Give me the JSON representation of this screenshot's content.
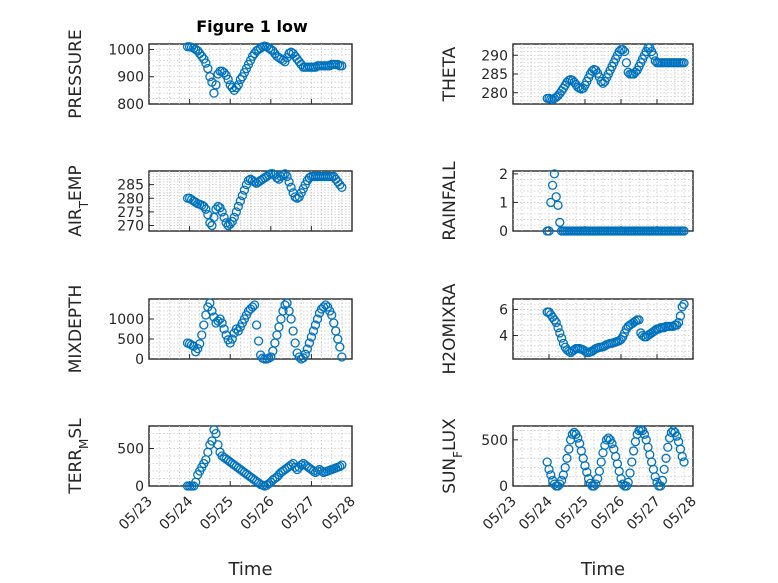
{
  "figure_title": "Figure 1 low",
  "marker_color": "#0072BD",
  "x_axis_label": "Time",
  "x_tick_labels": [
    "05/23",
    "05/24",
    "05/25",
    "05/26",
    "05/27",
    "05/28"
  ],
  "chart_data": [
    {
      "type": "scatter",
      "ylabel_main": "PRESSURE",
      "ylabel_sub": "",
      "ylabel_rest": "",
      "title": "Figure 1 low",
      "ylim": [
        800,
        1020
      ],
      "yticks": [
        800,
        900,
        1000
      ],
      "x": [
        23.95,
        24.0,
        24.05,
        24.1,
        24.15,
        24.2,
        24.25,
        24.3,
        24.35,
        24.4,
        24.45,
        24.5,
        24.55,
        24.6,
        24.65,
        24.7,
        24.75,
        24.8,
        24.85,
        24.9,
        24.95,
        25.0,
        25.05,
        25.1,
        25.15,
        25.2,
        25.25,
        25.3,
        25.35,
        25.4,
        25.45,
        25.5,
        25.55,
        25.6,
        25.65,
        25.7,
        25.75,
        25.8,
        25.85,
        25.9,
        25.95,
        26.0,
        26.05,
        26.1,
        26.15,
        26.2,
        26.25,
        26.3,
        26.35,
        26.4,
        26.45,
        26.5,
        26.55,
        26.6,
        26.65,
        26.7,
        26.75,
        26.8,
        26.85,
        26.9,
        26.95,
        27.0,
        27.05,
        27.1,
        27.15,
        27.2,
        27.25,
        27.3,
        27.35,
        27.4,
        27.45,
        27.5,
        27.55,
        27.6,
        27.65,
        27.7,
        27.75
      ],
      "y": [
        1010,
        1010,
        1008,
        1005,
        1000,
        995,
        985,
        975,
        965,
        950,
        930,
        900,
        880,
        840,
        870,
        910,
        920,
        920,
        915,
        905,
        890,
        870,
        860,
        850,
        860,
        870,
        890,
        900,
        915,
        930,
        945,
        960,
        975,
        985,
        995,
        1000,
        1005,
        1010,
        1012,
        1010,
        1005,
        1000,
        995,
        985,
        975,
        970,
        965,
        960,
        955,
        970,
        985,
        990,
        985,
        975,
        965,
        955,
        945,
        935,
        935,
        935,
        935,
        935,
        935,
        935,
        940,
        940,
        940,
        940,
        940,
        940,
        940,
        945,
        945,
        945,
        945,
        940,
        940
      ]
    },
    {
      "type": "scatter",
      "ylabel_main": "THETA",
      "ylabel_sub": "",
      "ylabel_rest": "",
      "ylim": [
        277,
        293
      ],
      "yticks": [
        280,
        285,
        290
      ],
      "x": [
        23.95,
        24.0,
        24.05,
        24.1,
        24.15,
        24.2,
        24.25,
        24.3,
        24.35,
        24.4,
        24.45,
        24.5,
        24.55,
        24.6,
        24.65,
        24.7,
        24.75,
        24.8,
        24.85,
        24.9,
        24.95,
        25.0,
        25.05,
        25.1,
        25.15,
        25.2,
        25.25,
        25.3,
        25.35,
        25.4,
        25.45,
        25.5,
        25.55,
        25.6,
        25.65,
        25.7,
        25.75,
        25.8,
        25.85,
        25.9,
        25.95,
        26.0,
        26.05,
        26.1,
        26.15,
        26.2,
        26.25,
        26.3,
        26.35,
        26.4,
        26.45,
        26.5,
        26.55,
        26.6,
        26.65,
        26.7,
        26.75,
        26.8,
        26.85,
        26.9,
        26.95,
        27.0,
        27.05,
        27.1,
        27.15,
        27.2,
        27.25,
        27.3,
        27.35,
        27.4,
        27.45,
        27.5,
        27.55,
        27.6,
        27.65,
        27.7,
        27.75
      ],
      "y": [
        278.5,
        278.5,
        278.3,
        278.2,
        278.5,
        278.8,
        279.2,
        279.8,
        280.5,
        281.2,
        282,
        282.8,
        283.3,
        283.5,
        283.3,
        282.8,
        282.2,
        281.5,
        281.2,
        281,
        281.2,
        282,
        283,
        284,
        285,
        285.8,
        286.2,
        286,
        285.2,
        284.2,
        283,
        282.5,
        283,
        284,
        285,
        286,
        287,
        288,
        289,
        290,
        291,
        291.5,
        291.5,
        291,
        288,
        285.5,
        285,
        285,
        285,
        285.5,
        286,
        287,
        288,
        289,
        290,
        291,
        292,
        292,
        291,
        290,
        288.5,
        288,
        288,
        288,
        288,
        288,
        288,
        288,
        288,
        288,
        288,
        288,
        288,
        288,
        288,
        288,
        288
      ]
    },
    {
      "type": "scatter",
      "ylabel_main": "AIR",
      "ylabel_sub": "T",
      "ylabel_rest": "EMP",
      "ylim": [
        268,
        290
      ],
      "yticks": [
        270,
        275,
        280,
        285
      ],
      "x": [
        23.95,
        24.0,
        24.05,
        24.1,
        24.15,
        24.2,
        24.25,
        24.3,
        24.35,
        24.4,
        24.45,
        24.5,
        24.55,
        24.6,
        24.65,
        24.7,
        24.75,
        24.8,
        24.85,
        24.9,
        24.95,
        25.0,
        25.05,
        25.1,
        25.15,
        25.2,
        25.25,
        25.3,
        25.35,
        25.4,
        25.45,
        25.5,
        25.55,
        25.6,
        25.65,
        25.7,
        25.75,
        25.8,
        25.85,
        25.9,
        25.95,
        26.0,
        26.05,
        26.1,
        26.15,
        26.2,
        26.25,
        26.3,
        26.35,
        26.4,
        26.45,
        26.5,
        26.55,
        26.6,
        26.65,
        26.7,
        26.75,
        26.8,
        26.85,
        26.9,
        26.95,
        27.0,
        27.05,
        27.1,
        27.15,
        27.2,
        27.25,
        27.3,
        27.35,
        27.4,
        27.45,
        27.5,
        27.55,
        27.6,
        27.65,
        27.7,
        27.75
      ],
      "y": [
        280,
        280,
        279.5,
        279,
        278.5,
        278,
        277.8,
        277.5,
        277,
        276,
        274,
        271,
        270,
        273,
        276,
        277,
        276.5,
        275,
        273,
        271,
        270,
        270.5,
        271.5,
        273,
        275,
        277,
        279,
        281,
        283,
        285,
        286.5,
        287,
        286.5,
        286,
        285.5,
        286,
        286.5,
        287,
        287.5,
        288,
        288.5,
        289,
        289,
        288.5,
        287.5,
        287,
        288,
        288.5,
        289,
        288,
        286,
        284,
        282,
        280.5,
        280,
        280.5,
        282,
        283.5,
        285,
        286.5,
        287.5,
        288,
        288,
        288,
        288,
        288,
        288,
        288,
        288,
        288,
        288,
        288,
        288,
        287,
        286,
        285,
        284
      ]
    },
    {
      "type": "scatter",
      "ylabel_main": "RAINFALL",
      "ylabel_sub": "",
      "ylabel_rest": "",
      "ylim": [
        0,
        2.1
      ],
      "yticks": [
        0,
        1,
        2
      ],
      "x": [
        23.95,
        24.0,
        24.05,
        24.1,
        24.15,
        24.2,
        24.25,
        24.3,
        24.35,
        24.4,
        24.45,
        24.5,
        24.55,
        24.6,
        24.65,
        24.7,
        24.75,
        24.8,
        24.85,
        24.9,
        24.95,
        25.0,
        25.05,
        25.1,
        25.15,
        25.2,
        25.25,
        25.3,
        25.35,
        25.4,
        25.45,
        25.5,
        25.55,
        25.6,
        25.65,
        25.7,
        25.75,
        25.8,
        25.85,
        25.9,
        25.95,
        26.0,
        26.05,
        26.1,
        26.15,
        26.2,
        26.25,
        26.3,
        26.35,
        26.4,
        26.45,
        26.5,
        26.55,
        26.6,
        26.65,
        26.7,
        26.75,
        26.8,
        26.85,
        26.9,
        26.95,
        27.0,
        27.05,
        27.1,
        27.15,
        27.2,
        27.25,
        27.3,
        27.35,
        27.4,
        27.45,
        27.5,
        27.55,
        27.6,
        27.65,
        27.7,
        27.75
      ],
      "y": [
        0,
        0,
        1,
        1.6,
        2,
        1.2,
        0.9,
        0.3,
        0,
        0,
        0,
        0,
        0,
        0,
        0,
        0,
        0,
        0,
        0,
        0,
        0,
        0,
        0,
        0,
        0,
        0,
        0,
        0,
        0,
        0,
        0,
        0,
        0,
        0,
        0,
        0,
        0,
        0,
        0,
        0,
        0,
        0,
        0,
        0,
        0,
        0,
        0,
        0,
        0,
        0,
        0,
        0,
        0,
        0,
        0,
        0,
        0,
        0,
        0,
        0,
        0,
        0,
        0,
        0,
        0,
        0,
        0,
        0,
        0,
        0,
        0,
        0,
        0,
        0,
        0,
        0,
        0
      ]
    },
    {
      "type": "scatter",
      "ylabel_main": "MIXDEPTH",
      "ylabel_sub": "",
      "ylabel_rest": "",
      "ylim": [
        0,
        1500
      ],
      "yticks": [
        0,
        500,
        1000
      ],
      "x": [
        23.95,
        24.0,
        24.05,
        24.1,
        24.15,
        24.2,
        24.25,
        24.3,
        24.35,
        24.4,
        24.45,
        24.5,
        24.55,
        24.6,
        24.65,
        24.7,
        24.75,
        24.8,
        24.85,
        24.9,
        24.95,
        25.0,
        25.05,
        25.1,
        25.15,
        25.2,
        25.25,
        25.3,
        25.35,
        25.4,
        25.45,
        25.5,
        25.55,
        25.6,
        25.65,
        25.7,
        25.75,
        25.8,
        25.85,
        25.9,
        25.95,
        26.0,
        26.05,
        26.1,
        26.15,
        26.2,
        26.25,
        26.3,
        26.35,
        26.4,
        26.45,
        26.5,
        26.55,
        26.6,
        26.65,
        26.7,
        26.75,
        26.8,
        26.85,
        26.9,
        26.95,
        27.0,
        27.05,
        27.1,
        27.15,
        27.2,
        27.25,
        27.3,
        27.35,
        27.4,
        27.45,
        27.5,
        27.55,
        27.6,
        27.65,
        27.7,
        27.75
      ],
      "y": [
        400,
        380,
        350,
        320,
        180,
        260,
        380,
        600,
        850,
        1100,
        1300,
        1400,
        1200,
        1050,
        900,
        950,
        1000,
        900,
        750,
        600,
        480,
        400,
        500,
        650,
        750,
        700,
        800,
        900,
        1000,
        1100,
        1200,
        1250,
        1300,
        1350,
        850,
        450,
        100,
        20,
        0,
        0,
        20,
        50,
        200,
        400,
        600,
        800,
        1000,
        1200,
        1350,
        1400,
        1200,
        1000,
        700,
        400,
        150,
        50,
        0,
        30,
        120,
        250,
        400,
        550,
        700,
        850,
        1000,
        1150,
        1250,
        1300,
        1350,
        1300,
        1200,
        1100,
        900,
        700,
        500,
        300,
        50
      ]
    },
    {
      "type": "scatter",
      "ylabel_main": "H2OMIXRA",
      "ylabel_sub": "",
      "ylabel_rest": "",
      "ylim": [
        2.2,
        6.8
      ],
      "yticks": [
        4,
        6
      ],
      "x": [
        23.95,
        24.0,
        24.05,
        24.1,
        24.15,
        24.2,
        24.25,
        24.3,
        24.35,
        24.4,
        24.45,
        24.5,
        24.55,
        24.6,
        24.65,
        24.7,
        24.75,
        24.8,
        24.85,
        24.9,
        24.95,
        25.0,
        25.05,
        25.1,
        25.15,
        25.2,
        25.25,
        25.3,
        25.35,
        25.4,
        25.45,
        25.5,
        25.55,
        25.6,
        25.65,
        25.7,
        25.75,
        25.8,
        25.85,
        25.9,
        25.95,
        26.0,
        26.05,
        26.1,
        26.15,
        26.2,
        26.25,
        26.3,
        26.35,
        26.4,
        26.45,
        26.5,
        26.55,
        26.6,
        26.65,
        26.7,
        26.75,
        26.8,
        26.85,
        26.9,
        26.95,
        27.0,
        27.05,
        27.1,
        27.15,
        27.2,
        27.25,
        27.3,
        27.35,
        27.4,
        27.45,
        27.5,
        27.55,
        27.6,
        27.65,
        27.7,
        27.75
      ],
      "y": [
        5.8,
        5.8,
        5.6,
        5.4,
        5.2,
        5.0,
        4.6,
        4.2,
        3.8,
        3.4,
        3.1,
        2.9,
        2.8,
        2.7,
        2.8,
        2.9,
        3.0,
        3.0,
        3.0,
        2.95,
        2.9,
        2.8,
        2.7,
        2.7,
        2.75,
        2.8,
        2.9,
        3.0,
        3.05,
        3.1,
        3.1,
        3.15,
        3.2,
        3.3,
        3.35,
        3.4,
        3.4,
        3.45,
        3.5,
        3.55,
        3.6,
        3.7,
        3.9,
        4.2,
        4.5,
        4.7,
        4.8,
        4.9,
        5.0,
        5.1,
        5.2,
        5.2,
        4.2,
        4.0,
        3.9,
        3.9,
        4.0,
        4.1,
        4.2,
        4.3,
        4.4,
        4.5,
        4.5,
        4.6,
        4.6,
        4.6,
        4.7,
        4.7,
        4.7,
        4.7,
        4.7,
        4.8,
        4.8,
        5.0,
        5.5,
        6.2,
        6.4
      ]
    },
    {
      "type": "scatter",
      "ylabel_main": "TERR",
      "ylabel_sub": "M",
      "ylabel_rest": "SL",
      "ylim": [
        0,
        800
      ],
      "yticks": [
        0,
        500
      ],
      "x": [
        23.95,
        24.0,
        24.05,
        24.1,
        24.15,
        24.2,
        24.25,
        24.3,
        24.35,
        24.4,
        24.45,
        24.5,
        24.55,
        24.6,
        24.65,
        24.7,
        24.75,
        24.8,
        24.85,
        24.9,
        24.95,
        25.0,
        25.05,
        25.1,
        25.15,
        25.2,
        25.25,
        25.3,
        25.35,
        25.4,
        25.45,
        25.5,
        25.55,
        25.6,
        25.65,
        25.7,
        25.75,
        25.8,
        25.85,
        25.9,
        25.95,
        26.0,
        26.05,
        26.1,
        26.15,
        26.2,
        26.25,
        26.3,
        26.35,
        26.4,
        26.45,
        26.5,
        26.55,
        26.6,
        26.65,
        26.7,
        26.75,
        26.8,
        26.85,
        26.9,
        26.95,
        27.0,
        27.05,
        27.1,
        27.15,
        27.2,
        27.25,
        27.3,
        27.35,
        27.4,
        27.45,
        27.5,
        27.55,
        27.6,
        27.65,
        27.7,
        27.75
      ],
      "y": [
        0,
        0,
        0,
        0,
        50,
        150,
        200,
        250,
        300,
        350,
        450,
        550,
        600,
        750,
        700,
        550,
        450,
        400,
        380,
        360,
        340,
        320,
        300,
        280,
        260,
        240,
        220,
        200,
        180,
        160,
        140,
        120,
        100,
        80,
        60,
        40,
        20,
        10,
        0,
        10,
        30,
        50,
        80,
        100,
        120,
        150,
        180,
        200,
        220,
        240,
        260,
        280,
        300,
        250,
        220,
        250,
        280,
        300,
        280,
        260,
        240,
        220,
        200,
        180,
        200,
        220,
        200,
        180,
        190,
        200,
        210,
        220,
        230,
        240,
        250,
        260,
        280
      ]
    },
    {
      "type": "scatter",
      "ylabel_main": "SUN",
      "ylabel_sub": "F",
      "ylabel_rest": "LUX",
      "ylim": [
        0,
        650
      ],
      "yticks": [
        0,
        500
      ],
      "x": [
        23.95,
        24.0,
        24.05,
        24.1,
        24.15,
        24.2,
        24.25,
        24.3,
        24.35,
        24.4,
        24.45,
        24.5,
        24.55,
        24.6,
        24.65,
        24.7,
        24.75,
        24.8,
        24.85,
        24.9,
        24.95,
        25.0,
        25.05,
        25.1,
        25.15,
        25.2,
        25.25,
        25.3,
        25.35,
        25.4,
        25.45,
        25.5,
        25.55,
        25.6,
        25.65,
        25.7,
        25.75,
        25.8,
        25.85,
        25.9,
        25.95,
        26.0,
        26.05,
        26.1,
        26.15,
        26.2,
        26.25,
        26.3,
        26.35,
        26.4,
        26.45,
        26.5,
        26.55,
        26.6,
        26.65,
        26.7,
        26.75,
        26.8,
        26.85,
        26.9,
        26.95,
        27.0,
        27.05,
        27.1,
        27.15,
        27.2,
        27.25,
        27.3,
        27.35,
        27.4,
        27.45,
        27.5,
        27.55,
        27.6,
        27.65,
        27.7,
        27.75
      ],
      "y": [
        260,
        180,
        120,
        60,
        20,
        0,
        0,
        20,
        60,
        120,
        200,
        300,
        400,
        500,
        560,
        580,
        560,
        520,
        460,
        380,
        300,
        220,
        150,
        80,
        30,
        0,
        0,
        20,
        80,
        160,
        260,
        360,
        440,
        500,
        520,
        500,
        460,
        400,
        320,
        240,
        160,
        80,
        20,
        0,
        0,
        40,
        140,
        260,
        380,
        480,
        560,
        600,
        610,
        600,
        560,
        500,
        420,
        340,
        260,
        180,
        100,
        40,
        0,
        0,
        60,
        180,
        300,
        420,
        520,
        580,
        600,
        580,
        540,
        480,
        400,
        320,
        260
      ]
    }
  ]
}
